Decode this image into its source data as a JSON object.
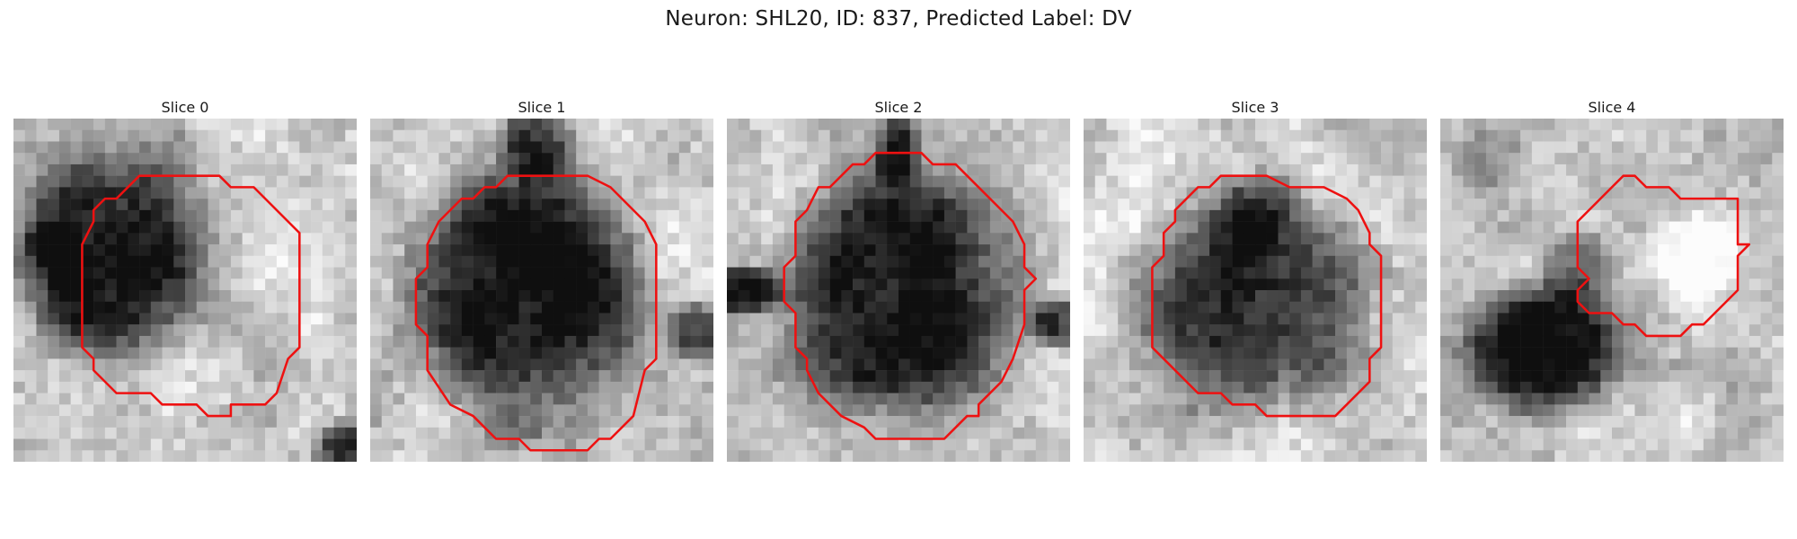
{
  "figure": {
    "title": "Neuron: SHL20, ID: 837, Predicted Label: DV"
  },
  "contour_color": "#ee1111",
  "panels": [
    {
      "title": "Slice 0"
    },
    {
      "title": "Slice 1"
    },
    {
      "title": "Slice 2"
    },
    {
      "title": "Slice 3"
    },
    {
      "title": "Slice 4"
    }
  ]
}
